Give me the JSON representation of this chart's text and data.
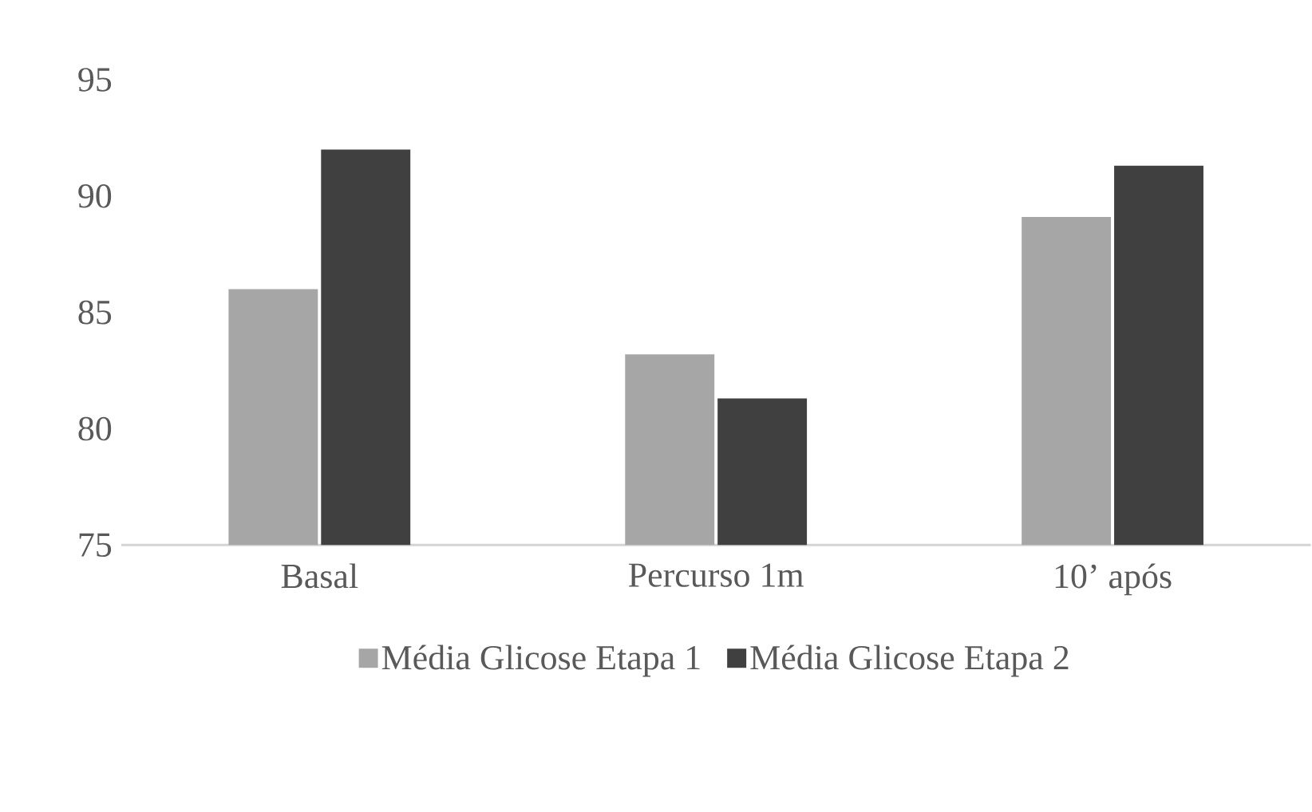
{
  "chart_data": {
    "type": "bar",
    "categories": [
      "Basal",
      "Percurso 1m",
      "10’ após"
    ],
    "series": [
      {
        "name": "Média Glicose Etapa 1",
        "color": "#a6a6a6",
        "values": [
          86.0,
          83.2,
          89.1
        ]
      },
      {
        "name": "Média Glicose Etapa 2",
        "color": "#404040",
        "values": [
          92.0,
          81.3,
          91.3
        ]
      }
    ],
    "ylim": [
      75,
      95
    ],
    "yticks": [
      75,
      80,
      85,
      90,
      95
    ],
    "grid": false,
    "legend": "bottom"
  }
}
